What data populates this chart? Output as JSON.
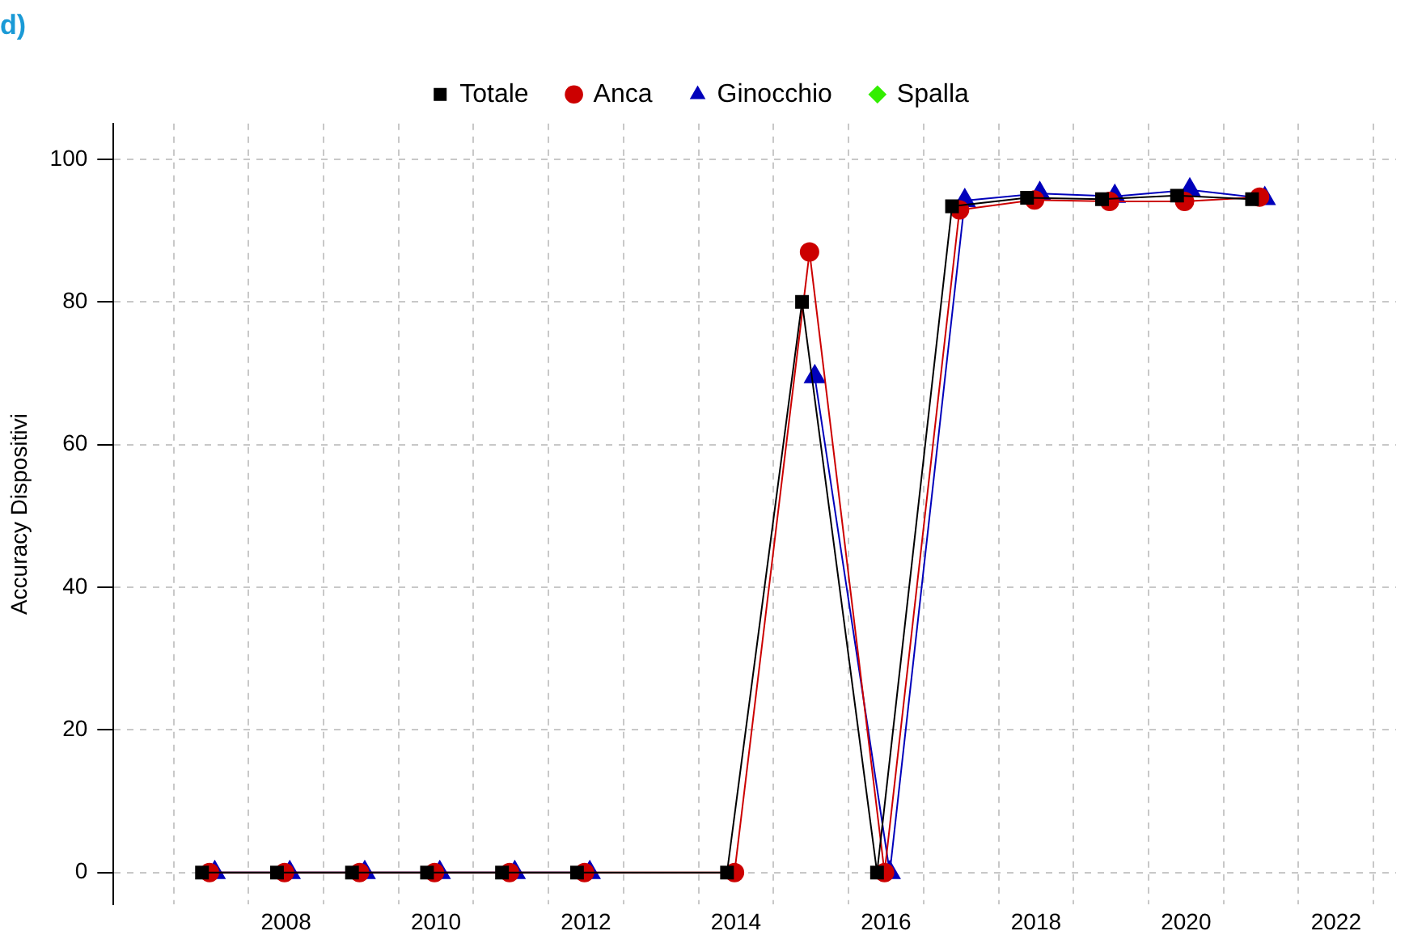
{
  "chart_data": {
    "type": "line",
    "title": "d)",
    "ylabel": "Accuracy Dispositivi",
    "xlim": [
      2005.7,
      2022.8
    ],
    "ylim": [
      -4.5,
      105
    ],
    "xticks": [
      {
        "value": 2006.5,
        "label": null
      },
      {
        "value": 2007.5,
        "label": null
      },
      2008,
      {
        "value": 2008.5,
        "label": null
      },
      {
        "value": 2009.5,
        "label": null
      },
      2010,
      {
        "value": 2010.5,
        "label": null
      },
      {
        "value": 2011.5,
        "label": null
      },
      2012,
      {
        "value": 2012.5,
        "label": null
      },
      {
        "value": 2013.5,
        "label": null
      },
      2014,
      {
        "value": 2014.5,
        "label": null
      },
      {
        "value": 2015.5,
        "label": null
      },
      2016,
      {
        "value": 2016.5,
        "label": null
      },
      {
        "value": 2017.5,
        "label": null
      },
      2018,
      {
        "value": 2018.5,
        "label": null
      },
      {
        "value": 2019.5,
        "label": null
      },
      2020,
      {
        "value": 2020.5,
        "label": null
      },
      {
        "value": 2021.5,
        "label": null
      },
      2022,
      {
        "value": 2022.5,
        "label": null
      }
    ],
    "yticks": [
      0,
      20,
      40,
      60,
      80,
      100
    ],
    "grid": true,
    "legend": "top",
    "series": [
      {
        "name": "Totale",
        "color": "#000000",
        "marker": "square",
        "x": [
          2006.88,
          2007.88,
          2008.88,
          2009.88,
          2010.88,
          2011.88,
          2013.88,
          2014.88,
          2015.88,
          2016.88,
          2017.88,
          2018.88,
          2019.88,
          2020.88
        ],
        "values": [
          0,
          0,
          0,
          0,
          0,
          0,
          0,
          80,
          0,
          93.4,
          94.6,
          94.4,
          94.9,
          94.4
        ]
      },
      {
        "name": "Anca",
        "color": "#cc0000",
        "marker": "circle",
        "x": [
          2006.98,
          2007.98,
          2008.98,
          2009.98,
          2010.98,
          2011.98,
          2013.98,
          2014.98,
          2015.98,
          2016.98,
          2017.98,
          2018.98,
          2019.98,
          2020.98
        ],
        "values": [
          0,
          0,
          0,
          0,
          0,
          0,
          0,
          87,
          0,
          92.9,
          94.3,
          94.1,
          94.1,
          94.7
        ]
      },
      {
        "name": "Ginocchio",
        "color": "#0000bb",
        "marker": "triangle",
        "x": [
          2007.05,
          2008.05,
          2009.05,
          2010.05,
          2011.05,
          2012.05,
          2014.05,
          2015.05,
          2016.05,
          2017.05,
          2018.05,
          2019.05,
          2020.05,
          2021.05
        ],
        "values": [
          0,
          0,
          0,
          0,
          0,
          0,
          null,
          69.5,
          0,
          94.2,
          95.2,
          94.8,
          95.7,
          94.5
        ]
      },
      {
        "name": "Spalla",
        "color": "#33ee00",
        "marker": "diamond"
      }
    ]
  }
}
